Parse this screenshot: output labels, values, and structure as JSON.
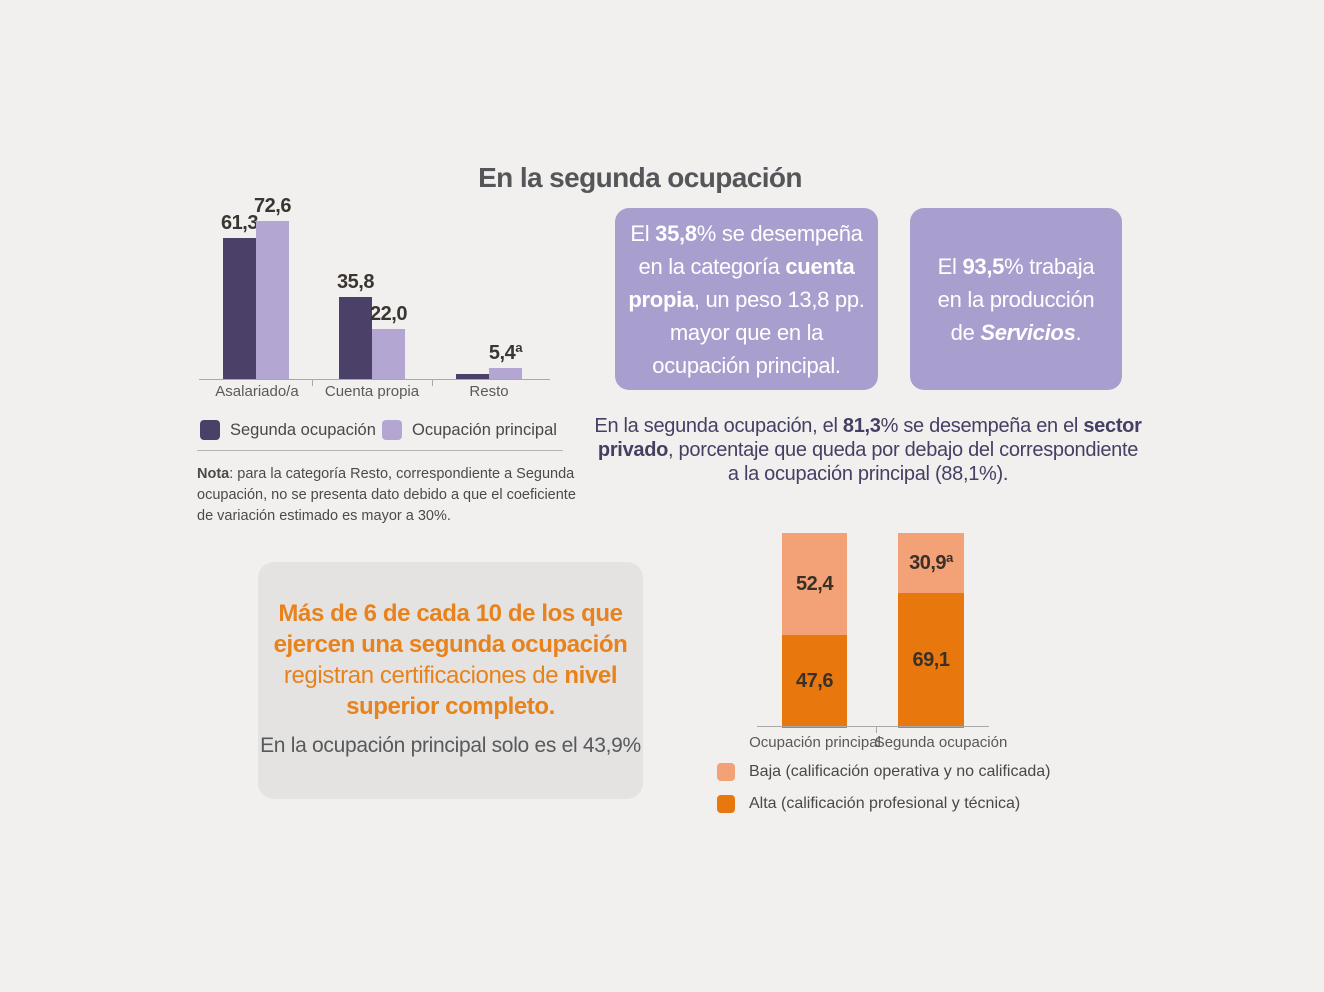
{
  "title": "En la segunda ocupación",
  "colors": {
    "background": "#f1f0ee",
    "segunda_ocupacion_bar": "#4b4068",
    "ocupacion_principal_bar": "#b3a6d2",
    "purple_box_bg": "#a89fce",
    "alta_bar": "#e8780d",
    "baja_bar": "#f3a177",
    "orange_text": "#e8821c",
    "gray_box_bg": "#e4e3e1",
    "paragraph_text": "#454063"
  },
  "chart_data": [
    {
      "type": "bar",
      "categories": [
        "Asalariado/a",
        "Cuenta propia",
        "Resto"
      ],
      "series": [
        {
          "name": "Segunda ocupación",
          "color": "#4b4068",
          "values": [
            61.3,
            35.8,
            null
          ],
          "value_labels": [
            "61,3",
            "35,8",
            ""
          ]
        },
        {
          "name": "Ocupación principal",
          "color": "#b3a6d2",
          "values": [
            72.6,
            22.0,
            5.4
          ],
          "value_labels": [
            "72,6",
            "22,0",
            "5,4ª"
          ]
        }
      ],
      "ylim": [
        0,
        80
      ],
      "grid": false,
      "legend_position": "bottom",
      "value_labels_shown": true
    },
    {
      "type": "bar-stacked",
      "categories": [
        "Ocupación principal",
        "Segunda ocupación"
      ],
      "series": [
        {
          "name": "Baja (calificación operativa y no calificada)",
          "color": "#f3a177",
          "values": [
            52.4,
            30.9
          ],
          "value_labels": [
            "52,4",
            "30,9ª"
          ]
        },
        {
          "name": "Alta (calificación profesional y técnica)",
          "color": "#e8780d",
          "values": [
            47.6,
            69.1
          ],
          "value_labels": [
            "47,6",
            "69,1"
          ]
        }
      ],
      "ylim": [
        0,
        100
      ],
      "grid": false,
      "legend_position": "bottom",
      "value_labels_shown": true
    }
  ],
  "note": {
    "label": "Nota",
    "l1_rest": ": para la categoría Resto, correspondiente a Segunda",
    "l2": "ocupación, no se presenta dato debido a que el coeficiente",
    "l3": "de variación estimado es mayor a 30%."
  },
  "purple_box_1": {
    "l1a": "El ",
    "l1b": "35,8",
    "l1c": "% se desempeña",
    "l2a": "en la categoría ",
    "l2b": "cuenta",
    "l3a": "propia",
    "l3b": ", un peso 13,8 pp.",
    "l4": "mayor que en la",
    "l5": "ocupación principal."
  },
  "purple_box_2": {
    "l1a": "El ",
    "l1b": "93,5",
    "l1c": "% trabaja",
    "l2": "en la producción",
    "l3a": "de ",
    "l3b": "Servicios",
    "l3c": "."
  },
  "sector_paragraph": {
    "l1a": "En la segunda ocupación, el ",
    "l1b": "81,3",
    "l1c": "% se desempeña en el ",
    "l1d": "sector",
    "l2a": "privado",
    "l2b": ", porcentaje que queda por debajo del correspondiente",
    "l3": "a la ocupación principal (88,1%)."
  },
  "highlight_box": {
    "l1": "Más de 6 de cada 10 de los que",
    "l2": "ejercen una segunda ocupación",
    "l3a": "registran certificaciones de ",
    "l3b": "nivel",
    "l4": "superior completo.",
    "sub": "En la ocupación principal solo es el 43,9%"
  }
}
